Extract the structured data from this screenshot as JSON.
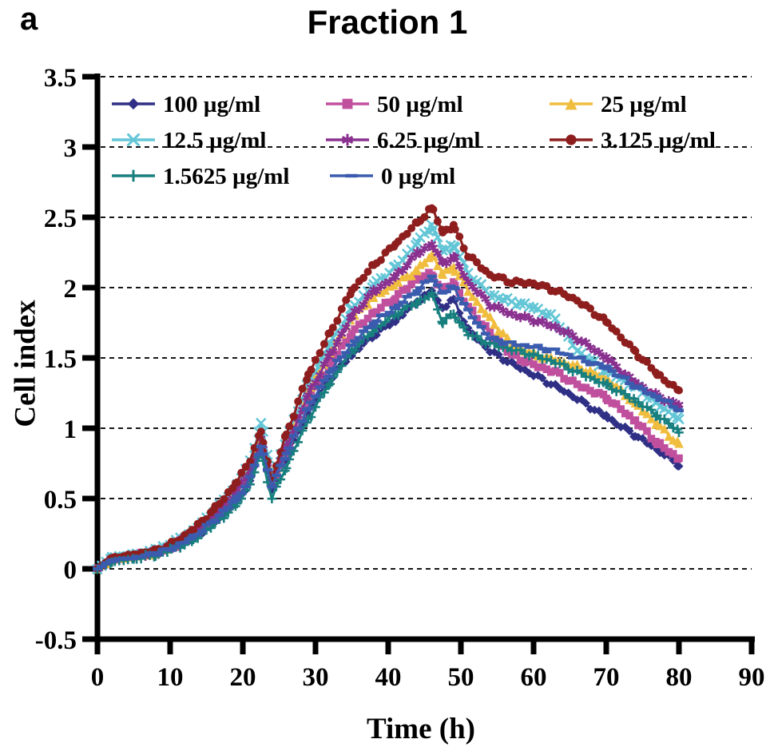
{
  "panel_label": "a",
  "title": "Fraction 1",
  "axes": {
    "y": {
      "label": "Cell index",
      "min": -0.5,
      "max": 3.5,
      "tick_step": 0.5,
      "tick_labels": [
        "3.5",
        "3",
        "2.5",
        "2",
        "1.5",
        "1",
        "0.5",
        "0",
        "-0.5"
      ]
    },
    "x": {
      "label": "Time (h)",
      "min": 0,
      "max": 90,
      "tick_step": 10,
      "tick_labels": [
        "0",
        "10",
        "20",
        "30",
        "40",
        "50",
        "60",
        "70",
        "80",
        "90"
      ]
    }
  },
  "colors": {
    "axis": "#000000",
    "grid": "#161616",
    "background": "#ffffff"
  },
  "chart_data": {
    "type": "line",
    "title": "Fraction 1",
    "xlabel": "Time (h)",
    "ylabel": "Cell index",
    "xlim": [
      0,
      90
    ],
    "ylim": [
      -0.5,
      3.5
    ],
    "grid": "horizontal dashed every 0.5",
    "legend_position": "top-inside, 3 columns",
    "x": [
      0,
      2,
      5,
      8,
      10,
      13,
      16,
      19,
      21,
      22.5,
      24,
      26,
      29,
      32,
      35,
      38,
      41,
      44,
      46,
      47.5,
      49,
      51,
      54,
      57,
      60,
      63,
      66,
      70,
      74,
      77,
      80
    ],
    "series": [
      {
        "name": "100 µg/ml",
        "color": "#2f2f86",
        "marker": "diamond",
        "values": [
          0,
          0.06,
          0.08,
          0.11,
          0.14,
          0.21,
          0.33,
          0.47,
          0.62,
          0.86,
          0.57,
          0.8,
          1.12,
          1.35,
          1.53,
          1.66,
          1.77,
          1.9,
          1.97,
          1.85,
          1.92,
          1.7,
          1.55,
          1.46,
          1.38,
          1.3,
          1.21,
          1.08,
          0.95,
          0.85,
          0.74
        ]
      },
      {
        "name": "50 µg/ml",
        "color": "#c0509e",
        "marker": "square",
        "values": [
          0,
          0.06,
          0.09,
          0.12,
          0.15,
          0.23,
          0.36,
          0.52,
          0.68,
          0.92,
          0.6,
          0.84,
          1.2,
          1.45,
          1.68,
          1.82,
          1.93,
          2.06,
          2.1,
          1.98,
          2.03,
          1.86,
          1.68,
          1.52,
          1.45,
          1.4,
          1.31,
          1.22,
          1.05,
          0.9,
          0.78
        ]
      },
      {
        "name": "25 µg/ml",
        "color": "#f0bd3e",
        "marker": "triangle",
        "values": [
          0,
          0.07,
          0.09,
          0.12,
          0.16,
          0.24,
          0.38,
          0.55,
          0.72,
          0.95,
          0.63,
          0.88,
          1.26,
          1.55,
          1.79,
          1.94,
          2.03,
          2.13,
          2.24,
          2.1,
          2.15,
          1.98,
          1.78,
          1.6,
          1.53,
          1.49,
          1.44,
          1.36,
          1.18,
          1.03,
          0.89
        ]
      },
      {
        "name": "12.5 µg/ml",
        "color": "#63c6d6",
        "marker": "x",
        "values": [
          0,
          0.08,
          0.1,
          0.13,
          0.17,
          0.26,
          0.4,
          0.58,
          0.76,
          1.04,
          0.65,
          0.92,
          1.32,
          1.6,
          1.85,
          2.02,
          2.14,
          2.32,
          2.44,
          2.26,
          2.31,
          2.1,
          1.95,
          1.9,
          1.86,
          1.78,
          1.55,
          1.41,
          1.3,
          1.17,
          1.07
        ]
      },
      {
        "name": "6.25 µg/ml",
        "color": "#8a3190",
        "marker": "asterisk",
        "values": [
          0,
          0.07,
          0.09,
          0.12,
          0.16,
          0.24,
          0.37,
          0.54,
          0.7,
          0.91,
          0.62,
          0.86,
          1.24,
          1.52,
          1.8,
          1.97,
          2.08,
          2.24,
          2.31,
          2.17,
          2.22,
          2.04,
          1.88,
          1.81,
          1.77,
          1.72,
          1.64,
          1.5,
          1.32,
          1.23,
          1.16
        ]
      },
      {
        "name": "3.125 µg/ml",
        "color": "#8e1e1e",
        "marker": "circle",
        "values": [
          0,
          0.08,
          0.1,
          0.13,
          0.17,
          0.27,
          0.42,
          0.6,
          0.78,
          0.97,
          0.64,
          0.96,
          1.38,
          1.68,
          1.98,
          2.16,
          2.31,
          2.46,
          2.57,
          2.4,
          2.43,
          2.23,
          2.09,
          2.04,
          2.03,
          1.98,
          1.91,
          1.76,
          1.54,
          1.39,
          1.26
        ]
      },
      {
        "name": "1.5625 µg/ml",
        "color": "#187f7f",
        "marker": "plus",
        "values": [
          0,
          0.05,
          0.07,
          0.1,
          0.13,
          0.2,
          0.31,
          0.45,
          0.6,
          0.83,
          0.5,
          0.73,
          1.06,
          1.33,
          1.55,
          1.7,
          1.81,
          1.9,
          1.95,
          1.76,
          1.81,
          1.67,
          1.6,
          1.56,
          1.52,
          1.47,
          1.4,
          1.31,
          1.2,
          1.09,
          0.98
        ]
      },
      {
        "name": "0 µg/ml",
        "color": "#3b5cae",
        "marker": "dash",
        "values": [
          0,
          0.06,
          0.08,
          0.11,
          0.14,
          0.22,
          0.34,
          0.49,
          0.64,
          0.87,
          0.59,
          0.82,
          1.15,
          1.4,
          1.6,
          1.75,
          1.86,
          1.98,
          2.07,
          1.96,
          2.01,
          1.83,
          1.64,
          1.6,
          1.58,
          1.55,
          1.5,
          1.43,
          1.3,
          1.22,
          1.14
        ]
      }
    ],
    "legend_rows": [
      [
        "100 µg/ml",
        "50 µg/ml",
        "25 µg/ml"
      ],
      [
        "12.5 µg/ml",
        "6.25 µg/ml",
        "3.125 µg/ml"
      ],
      [
        "1.5625 µg/ml",
        "0 µg/ml"
      ]
    ]
  }
}
